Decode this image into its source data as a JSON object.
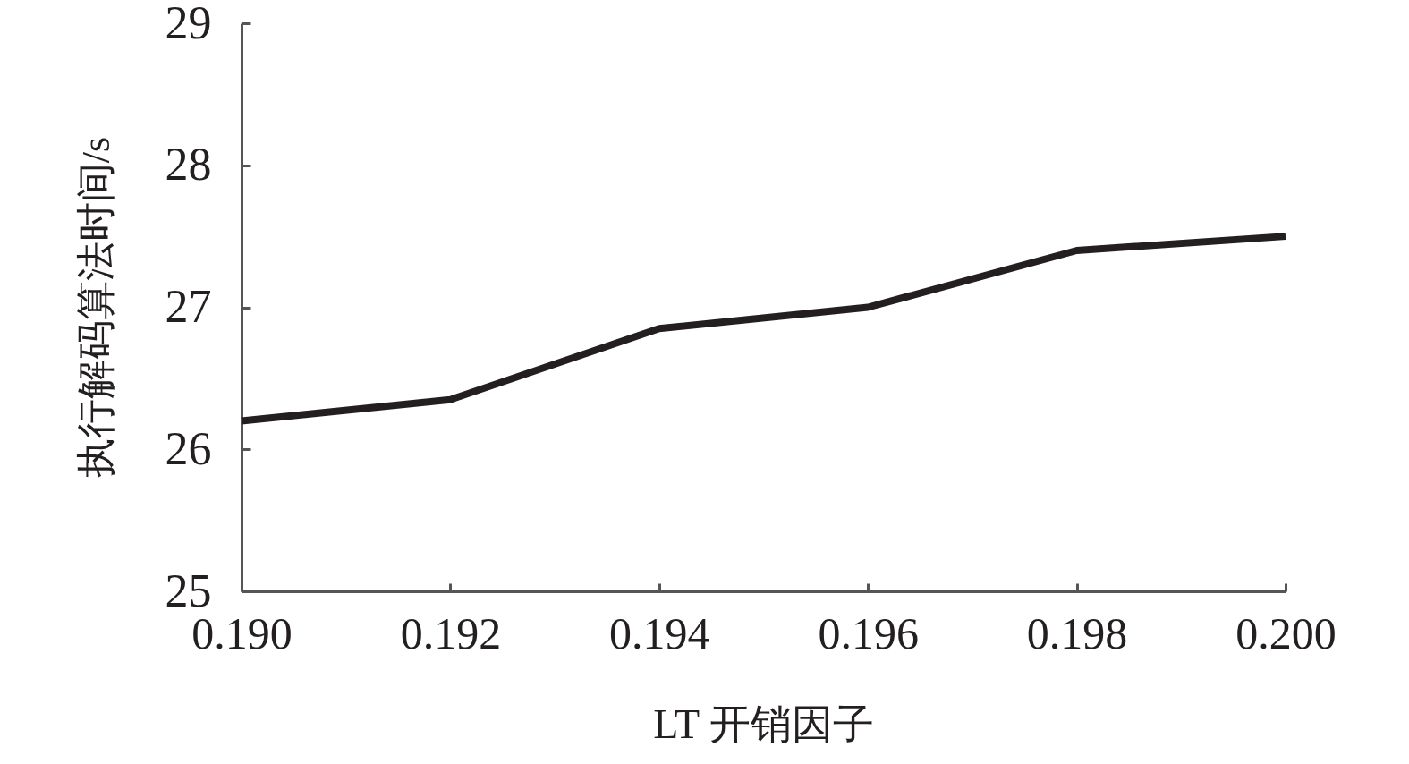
{
  "chart_data": {
    "type": "line",
    "xlabel": "LT 开销因子",
    "ylabel": "执行解码算法时间/s",
    "x": [
      0.19,
      0.192,
      0.194,
      0.196,
      0.198,
      0.2
    ],
    "series": [
      {
        "color": "#231f20",
        "values": [
          26.2,
          26.35,
          26.85,
          27.0,
          27.4,
          27.5
        ]
      }
    ],
    "xlim": [
      0.19,
      0.2
    ],
    "ylim": [
      25,
      29
    ],
    "xticks": [
      {
        "value": 0.19,
        "label": "0.190"
      },
      0.192,
      0.194,
      0.196,
      0.198,
      {
        "value": 0.2,
        "label": "0.200"
      }
    ],
    "yticks": [
      25,
      26,
      27,
      28,
      29
    ]
  }
}
